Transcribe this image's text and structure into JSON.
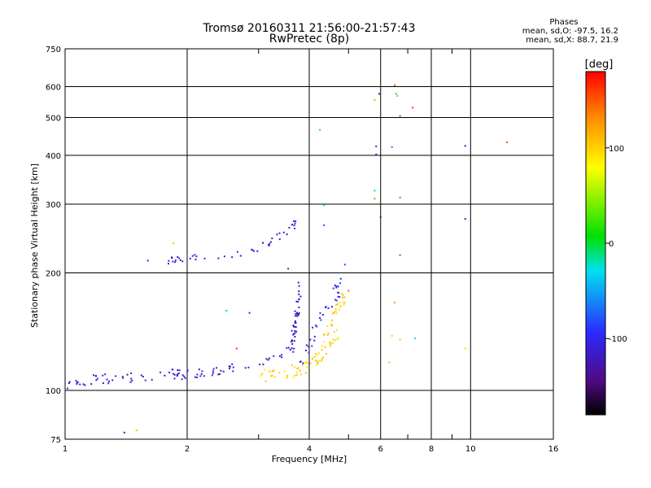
{
  "header": {
    "title": "Tromsø 20160311 21:56:00-21:57:43",
    "subtitle": "RwPretec (8p)"
  },
  "phases_box": {
    "heading": "Phases",
    "line_o": "mean, sd,O: -97.5, 16.2",
    "line_x": "mean, sd,X:  88.7, 21.9"
  },
  "colorbar": {
    "label": "[deg]",
    "ticks": [
      100,
      0,
      -100
    ],
    "range": [
      -180,
      180
    ]
  },
  "chart_data": {
    "type": "scatter",
    "xlabel": "Frequency [MHz]",
    "ylabel": "Stationary phase Virtual Height [km]",
    "xscale": "log",
    "yscale": "log",
    "xlim": [
      1,
      16
    ],
    "ylim": [
      75,
      750
    ],
    "xticks": [
      1,
      2,
      4,
      6,
      8,
      10,
      16
    ],
    "xgrid": [
      1,
      2,
      4,
      6,
      8,
      10,
      16
    ],
    "xminor": [
      3,
      5,
      7,
      9
    ],
    "yticks": [
      75,
      100,
      200,
      300,
      400,
      500,
      600,
      750
    ],
    "grid": true,
    "color_variable": "phase (deg)",
    "traces": [
      {
        "x": [
          1.0,
          1.12,
          1.25,
          1.4,
          1.6,
          1.8,
          2.0,
          2.3,
          2.6,
          2.9,
          3.2,
          3.5,
          3.8
        ],
        "y": [
          103,
          106,
          107,
          108,
          109,
          110,
          110,
          112,
          114,
          117,
          121,
          126,
          132
        ],
        "spread": 0.03,
        "phase": -110,
        "n": 95
      },
      {
        "x": [
          3.0,
          3.3,
          3.6,
          3.9,
          4.1,
          4.3,
          4.5,
          4.7
        ],
        "y": [
          108,
          110,
          112,
          115,
          118,
          123,
          132,
          140
        ],
        "spread": 0.04,
        "phase": 100,
        "n": 60
      },
      {
        "x": [
          3.6,
          3.7,
          3.8
        ],
        "y": [
          125,
          150,
          185
        ],
        "spread": 0.05,
        "phase": -115,
        "n": 40
      },
      {
        "x": [
          3.8,
          4.1,
          4.4,
          4.6,
          4.8
        ],
        "y": [
          115,
          140,
          165,
          175,
          185
        ],
        "spread": 0.05,
        "phase": -100,
        "n": 35
      },
      {
        "x": [
          4.3,
          4.5,
          4.7,
          4.9
        ],
        "y": [
          130,
          145,
          160,
          175
        ],
        "spread": 0.04,
        "phase": 100,
        "n": 30
      },
      {
        "x": [
          1.8,
          2.0,
          2.3,
          2.6,
          2.9,
          3.2,
          3.5,
          3.7
        ],
        "y": [
          215,
          218,
          220,
          223,
          228,
          240,
          255,
          268
        ],
        "spread": 0.02,
        "phase": -105,
        "n": 45
      }
    ],
    "points": [
      {
        "x": 1.6,
        "y": 215,
        "phase": -110
      },
      {
        "x": 1.85,
        "y": 238,
        "phase": 110
      },
      {
        "x": 2.5,
        "y": 160,
        "phase": -10
      },
      {
        "x": 2.85,
        "y": 158,
        "phase": -100
      },
      {
        "x": 2.65,
        "y": 128,
        "phase": 160
      },
      {
        "x": 3.55,
        "y": 205,
        "phase": -110
      },
      {
        "x": 4.25,
        "y": 465,
        "phase": -10
      },
      {
        "x": 4.35,
        "y": 298,
        "phase": -20
      },
      {
        "x": 4.35,
        "y": 265,
        "phase": -80
      },
      {
        "x": 4.9,
        "y": 210,
        "phase": -80
      },
      {
        "x": 5.0,
        "y": 180,
        "phase": 150
      },
      {
        "x": 5.8,
        "y": 325,
        "phase": -10
      },
      {
        "x": 5.8,
        "y": 310,
        "phase": 140
      },
      {
        "x": 5.8,
        "y": 555,
        "phase": 120
      },
      {
        "x": 5.85,
        "y": 422,
        "phase": -110
      },
      {
        "x": 5.85,
        "y": 402,
        "phase": -140
      },
      {
        "x": 5.95,
        "y": 575,
        "phase": -120
      },
      {
        "x": 6.0,
        "y": 278,
        "phase": -125
      },
      {
        "x": 6.5,
        "y": 605,
        "phase": 155
      },
      {
        "x": 6.55,
        "y": 575,
        "phase": -10
      },
      {
        "x": 6.6,
        "y": 568,
        "phase": 125
      },
      {
        "x": 6.4,
        "y": 420,
        "phase": -60
      },
      {
        "x": 6.7,
        "y": 505,
        "phase": 160
      },
      {
        "x": 6.7,
        "y": 312,
        "phase": 150
      },
      {
        "x": 6.7,
        "y": 222,
        "phase": 160
      },
      {
        "x": 6.5,
        "y": 168,
        "phase": 130
      },
      {
        "x": 6.4,
        "y": 138,
        "phase": 100
      },
      {
        "x": 6.7,
        "y": 135,
        "phase": 105
      },
      {
        "x": 6.3,
        "y": 118,
        "phase": 110
      },
      {
        "x": 7.2,
        "y": 530,
        "phase": 160
      },
      {
        "x": 7.3,
        "y": 136,
        "phase": -20
      },
      {
        "x": 9.7,
        "y": 423,
        "phase": -120
      },
      {
        "x": 9.7,
        "y": 275,
        "phase": -120
      },
      {
        "x": 9.7,
        "y": 128,
        "phase": 100
      },
      {
        "x": 12.3,
        "y": 432,
        "phase": 150
      },
      {
        "x": 1.4,
        "y": 78,
        "phase": -120
      },
      {
        "x": 1.5,
        "y": 79,
        "phase": 110
      }
    ]
  }
}
